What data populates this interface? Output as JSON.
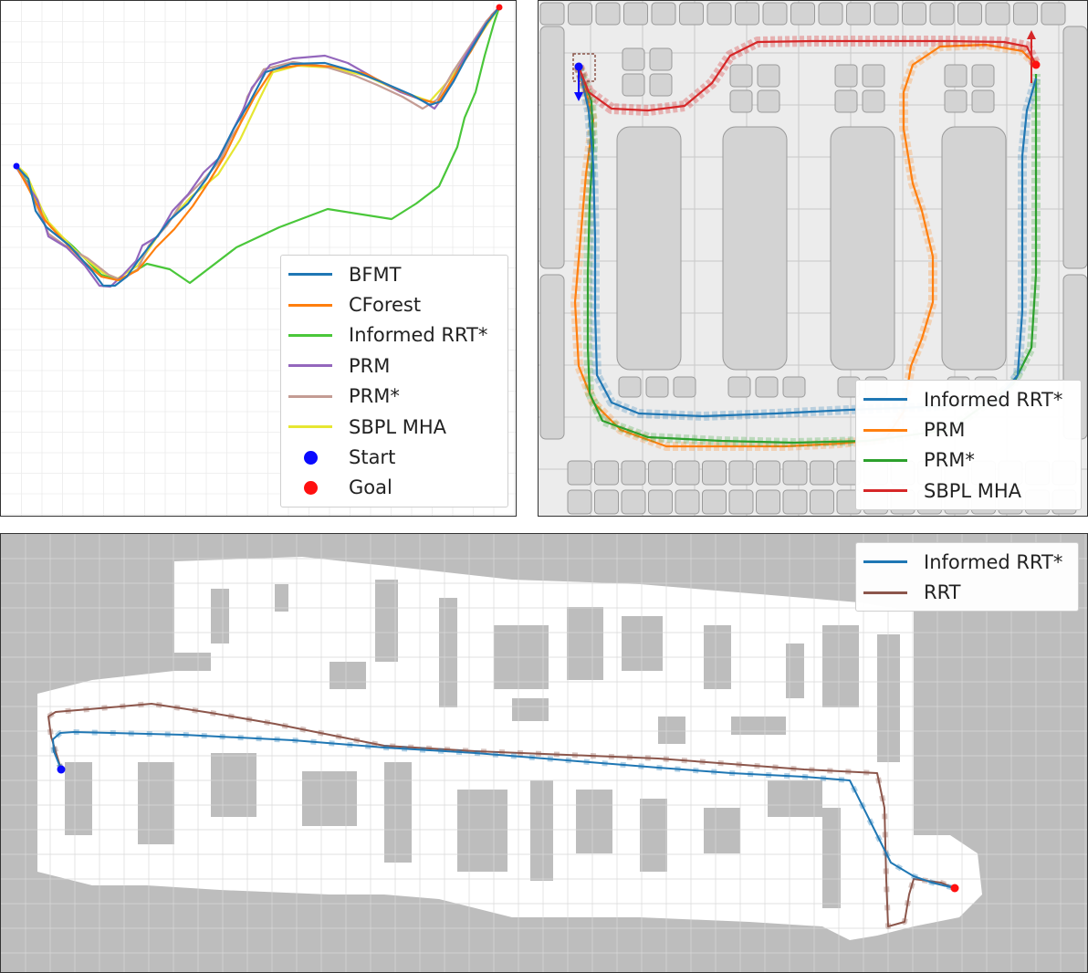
{
  "colors": {
    "blue": "#1f77b4",
    "orange": "#ff7f0e",
    "green_a": "#4ac73a",
    "green_b": "#2ca02c",
    "purple": "#9467bd",
    "pink": "#c49c94",
    "yellow": "#e6e632",
    "red": "#d62728",
    "brown": "#8c564b",
    "start": "#0a0aff",
    "goal": "#ff1010",
    "obstacle_fill": "#d3d3d3",
    "obstacle_stroke": "#9a9a9a"
  },
  "panel_a": {
    "legend": [
      {
        "label": "BFMT",
        "kind": "line",
        "color": "#1f77b4"
      },
      {
        "label": "CForest",
        "kind": "line",
        "color": "#ff7f0e"
      },
      {
        "label": "Informed RRT*",
        "kind": "line",
        "color": "#4ac73a"
      },
      {
        "label": "PRM",
        "kind": "line",
        "color": "#9467bd"
      },
      {
        "label": "PRM*",
        "kind": "line",
        "color": "#c49c94"
      },
      {
        "label": "SBPL MHA",
        "kind": "line",
        "color": "#e6e632"
      },
      {
        "label": "Start",
        "kind": "dot",
        "color": "#0a0aff"
      },
      {
        "label": "Goal",
        "kind": "dot",
        "color": "#ff1010"
      }
    ]
  },
  "panel_b": {
    "legend": [
      {
        "label": "Informed RRT*",
        "kind": "line",
        "color": "#1f77b4"
      },
      {
        "label": "PRM",
        "kind": "line",
        "color": "#ff7f0e"
      },
      {
        "label": "PRM*",
        "kind": "line",
        "color": "#2ca02c"
      },
      {
        "label": "SBPL MHA",
        "kind": "line",
        "color": "#d62728"
      }
    ]
  },
  "panel_c": {
    "legend": [
      {
        "label": "Informed RRT*",
        "kind": "line",
        "color": "#1f77b4"
      },
      {
        "label": "RRT",
        "kind": "line",
        "color": "#8c564b"
      }
    ]
  }
}
